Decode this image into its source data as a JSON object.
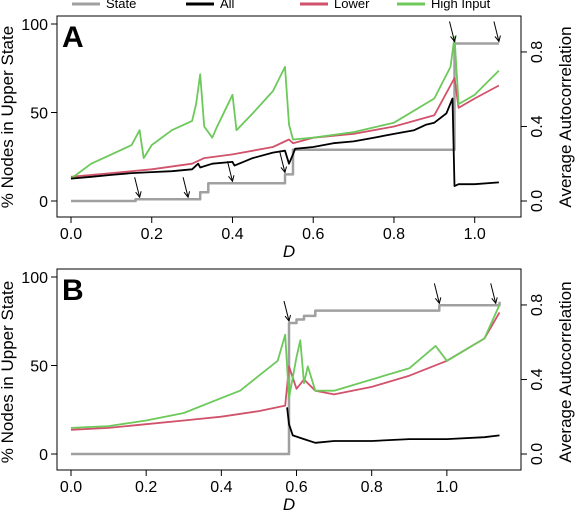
{
  "legend": [
    {
      "name": "State",
      "color": "#a0a0a0"
    },
    {
      "name": "All",
      "color": "#000000"
    },
    {
      "name": "Lower",
      "color": "#d1526b"
    },
    {
      "name": "High Input",
      "color": "#6cc95a"
    }
  ],
  "chart_data": [
    {
      "type": "line",
      "panel_label": "A",
      "xlabel": "D",
      "ylabel_left": "% Nodes in Upper State",
      "ylabel_right": "Average Autocorrelation",
      "xlim": [
        0,
        1.08
      ],
      "ylim_left": [
        0,
        100
      ],
      "ylim_right": [
        0,
        0.95
      ],
      "x_ticks": [
        "0.0",
        "0.2",
        "0.4",
        "0.6",
        "0.8",
        "1.0"
      ],
      "y_ticks_left": [
        "0",
        "50",
        "100"
      ],
      "y_ticks_right": [
        "0.0",
        "0.4",
        "0.8"
      ],
      "series": [
        {
          "name": "State",
          "axis": "left",
          "step": true,
          "x": [
            0.0,
            0.16,
            0.29,
            0.32,
            0.34,
            0.38,
            0.53,
            0.55,
            0.94,
            0.95,
            1.06
          ],
          "y": [
            0,
            1,
            1,
            5,
            10,
            10,
            15,
            29,
            29,
            89,
            89
          ]
        },
        {
          "name": "All",
          "axis": "right",
          "x": [
            0.0,
            0.05,
            0.1,
            0.15,
            0.2,
            0.25,
            0.3,
            0.315,
            0.32,
            0.35,
            0.4,
            0.405,
            0.45,
            0.5,
            0.53,
            0.54,
            0.55,
            0.555,
            0.6,
            0.65,
            0.7,
            0.75,
            0.8,
            0.85,
            0.88,
            0.9,
            0.93,
            0.945,
            0.95,
            0.96,
            1.0,
            1.06
          ],
          "y": [
            0.12,
            0.13,
            0.14,
            0.15,
            0.155,
            0.16,
            0.17,
            0.2,
            0.18,
            0.2,
            0.21,
            0.19,
            0.23,
            0.26,
            0.27,
            0.2,
            0.25,
            0.28,
            0.29,
            0.31,
            0.32,
            0.34,
            0.36,
            0.38,
            0.41,
            0.42,
            0.47,
            0.55,
            0.08,
            0.09,
            0.09,
            0.1
          ]
        },
        {
          "name": "Lower",
          "axis": "right",
          "x": [
            0.0,
            0.1,
            0.2,
            0.3,
            0.33,
            0.4,
            0.5,
            0.54,
            0.55,
            0.6,
            0.7,
            0.8,
            0.9,
            0.95,
            0.96,
            1.0,
            1.06
          ],
          "y": [
            0.13,
            0.15,
            0.17,
            0.2,
            0.23,
            0.25,
            0.29,
            0.33,
            0.31,
            0.34,
            0.36,
            0.4,
            0.46,
            0.66,
            0.5,
            0.55,
            0.62
          ]
        },
        {
          "name": "High Input",
          "axis": "right",
          "x": [
            0.0,
            0.05,
            0.1,
            0.15,
            0.17,
            0.18,
            0.2,
            0.25,
            0.3,
            0.31,
            0.32,
            0.33,
            0.35,
            0.36,
            0.4,
            0.41,
            0.45,
            0.5,
            0.53,
            0.54,
            0.55,
            0.6,
            0.7,
            0.8,
            0.9,
            0.94,
            0.95,
            0.96,
            1.0,
            1.06
          ],
          "y": [
            0.12,
            0.2,
            0.25,
            0.3,
            0.38,
            0.23,
            0.3,
            0.38,
            0.43,
            0.52,
            0.68,
            0.4,
            0.34,
            0.39,
            0.57,
            0.38,
            0.47,
            0.59,
            0.72,
            0.41,
            0.33,
            0.34,
            0.37,
            0.42,
            0.55,
            0.72,
            0.88,
            0.52,
            0.57,
            0.7
          ]
        }
      ],
      "arrows_x": [
        0.17,
        0.29,
        0.4,
        0.53,
        0.95,
        1.06
      ]
    },
    {
      "type": "line",
      "panel_label": "B",
      "xlabel": "D",
      "ylabel_left": "% Nodes in Upper State",
      "ylabel_right": "Average Autocorrelation",
      "xlim": [
        0,
        1.16
      ],
      "ylim_left": [
        0,
        100
      ],
      "ylim_right": [
        0,
        0.95
      ],
      "x_ticks": [
        "0.0",
        "0.2",
        "0.4",
        "0.6",
        "0.8",
        "1.0"
      ],
      "y_ticks_left": [
        "0",
        "50",
        "100"
      ],
      "y_ticks_right": [
        "0.0",
        "0.4",
        "0.8"
      ],
      "series": [
        {
          "name": "State",
          "axis": "left",
          "step": true,
          "x": [
            0.0,
            0.57,
            0.58,
            0.6,
            0.62,
            0.65,
            0.97,
            0.98,
            1.13,
            1.14
          ],
          "y": [
            0,
            0,
            74,
            76,
            78,
            81,
            81,
            84,
            84,
            86
          ]
        },
        {
          "name": "All",
          "axis": "right",
          "x": [
            0.575,
            0.58,
            0.59,
            0.62,
            0.65,
            0.7,
            0.8,
            0.9,
            1.0,
            1.1,
            1.14
          ],
          "y": [
            0.25,
            0.16,
            0.1,
            0.08,
            0.06,
            0.07,
            0.07,
            0.08,
            0.08,
            0.09,
            0.1
          ]
        },
        {
          "name": "Lower",
          "axis": "right",
          "x": [
            0.0,
            0.1,
            0.2,
            0.3,
            0.4,
            0.5,
            0.57,
            0.58,
            0.6,
            0.62,
            0.65,
            0.7,
            0.8,
            0.9,
            1.0,
            1.1,
            1.14
          ],
          "y": [
            0.13,
            0.14,
            0.16,
            0.18,
            0.2,
            0.23,
            0.26,
            0.47,
            0.35,
            0.4,
            0.34,
            0.32,
            0.36,
            0.42,
            0.5,
            0.62,
            0.76
          ]
        },
        {
          "name": "High Input",
          "axis": "right",
          "x": [
            0.0,
            0.1,
            0.2,
            0.3,
            0.4,
            0.45,
            0.5,
            0.55,
            0.57,
            0.58,
            0.6,
            0.61,
            0.62,
            0.63,
            0.65,
            0.7,
            0.8,
            0.9,
            0.97,
            1.0,
            1.1,
            1.14
          ],
          "y": [
            0.14,
            0.15,
            0.18,
            0.22,
            0.3,
            0.34,
            0.42,
            0.5,
            0.64,
            0.3,
            0.52,
            0.61,
            0.38,
            0.47,
            0.34,
            0.34,
            0.4,
            0.46,
            0.58,
            0.5,
            0.62,
            0.8
          ]
        }
      ],
      "arrows_x": [
        0.58,
        0.98,
        1.13
      ]
    }
  ]
}
